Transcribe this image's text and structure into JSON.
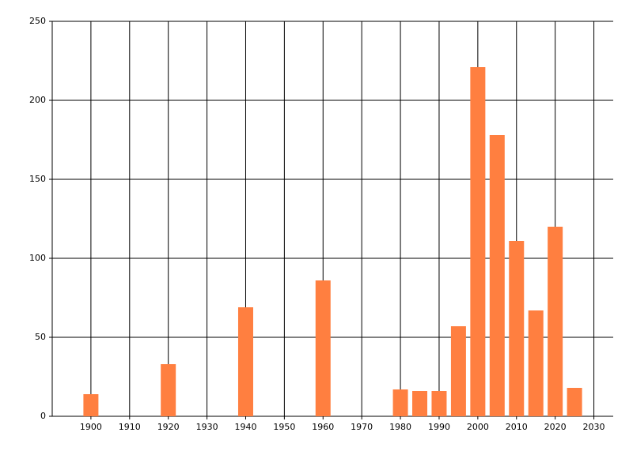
{
  "chart_data": {
    "type": "bar",
    "x": [
      1900,
      1920,
      1940,
      1960,
      1980,
      1985,
      1990,
      1995,
      2000,
      2005,
      2010,
      2015,
      2020,
      2025
    ],
    "values": [
      14,
      33,
      69,
      86,
      17,
      16,
      16,
      57,
      221,
      178,
      111,
      67,
      120,
      18
    ],
    "color": "#ff7f40",
    "xlim": [
      1890,
      2035
    ],
    "xticks": [
      1900,
      1910,
      1920,
      1930,
      1940,
      1950,
      1960,
      1970,
      1980,
      1990,
      2000,
      2010,
      2020,
      2030
    ],
    "ylim": [
      0,
      250
    ],
    "yticks": [
      0,
      50,
      100,
      150,
      200,
      250
    ],
    "grid": true
  }
}
